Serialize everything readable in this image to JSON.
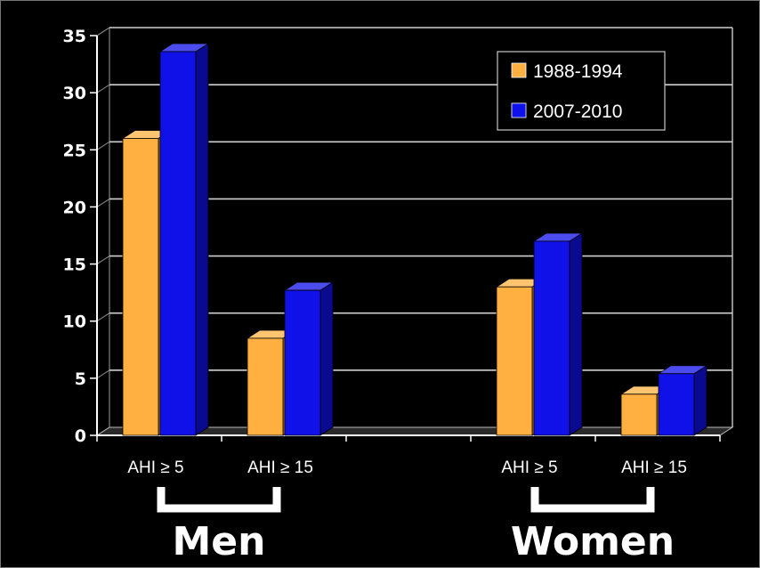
{
  "chart_data": {
    "type": "bar",
    "categories": [
      "AHI ≥ 5",
      "AHI ≥ 15",
      "",
      "AHI ≥ 5",
      "AHI ≥ 15"
    ],
    "series": [
      {
        "name": "1988-1994",
        "values": [
          26,
          8.5,
          null,
          13,
          3.6
        ],
        "color": "#FFB040"
      },
      {
        "name": "2007-2010",
        "values": [
          33.6,
          12.7,
          null,
          17,
          5.4
        ],
        "color": "#1010E8"
      }
    ],
    "group_labels": [
      {
        "label": "Men",
        "categories": [
          0,
          1
        ]
      },
      {
        "label": "Women",
        "categories": [
          3,
          4
        ]
      }
    ],
    "yticks": [
      0,
      5,
      10,
      15,
      20,
      25,
      30,
      35
    ],
    "ylim": [
      0,
      35
    ],
    "grid": true,
    "legend_position": "top-right",
    "background": "#000000"
  }
}
